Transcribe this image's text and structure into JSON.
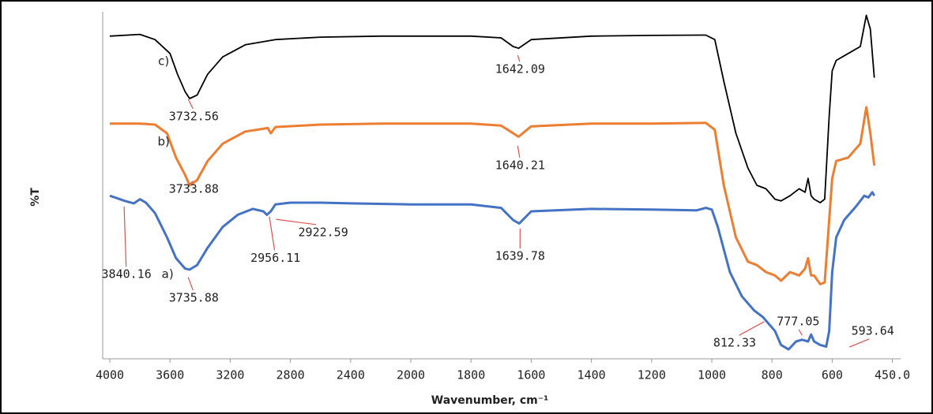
{
  "chart_data": {
    "type": "line",
    "y_label": "%T",
    "x_label": "Wavenumber, cm⁻¹",
    "xlim": [
      4000,
      450
    ],
    "xticks": [
      4000,
      3600,
      3200,
      2800,
      2400,
      2000,
      1800,
      1600,
      1400,
      1200,
      1000,
      800,
      600,
      {
        "value": 450,
        "label": "450.0"
      }
    ],
    "ylim": [
      0,
      100
    ],
    "series": [
      {
        "color": "#000000",
        "x": [
          4000,
          3800,
          3700,
          3600,
          3550,
          3500,
          3470,
          3420,
          3350,
          3250,
          3100,
          2900,
          2600,
          2200,
          1800,
          1700,
          1660,
          1642,
          1600,
          1400,
          1200,
          1020,
          990,
          960,
          920,
          880,
          850,
          820,
          790,
          770,
          740,
          710,
          690,
          680,
          670,
          660,
          640,
          625,
          610,
          600,
          590,
          560,
          530,
          515,
          505,
          495
        ],
        "values": [
          93,
          93.5,
          92,
          88,
          82,
          77,
          75,
          76,
          82,
          87,
          90.5,
          92,
          92.7,
          93,
          93,
          92.5,
          90,
          89.5,
          92,
          93,
          93.2,
          93.3,
          92,
          80,
          65,
          55,
          50,
          49,
          46,
          45.5,
          47,
          49,
          48,
          52,
          47,
          46,
          45,
          46,
          70,
          83,
          86,
          88,
          90,
          99,
          95,
          81
        ]
      },
      {
        "color": "#ed7d31",
        "x": [
          4000,
          3800,
          3700,
          3620,
          3560,
          3500,
          3470,
          3420,
          3350,
          3250,
          3100,
          2950,
          2930,
          2900,
          2600,
          2200,
          1800,
          1700,
          1660,
          1642,
          1600,
          1400,
          1200,
          1020,
          990,
          960,
          920,
          880,
          850,
          820,
          790,
          770,
          740,
          710,
          690,
          680,
          670,
          660,
          640,
          625,
          610,
          600,
          590,
          560,
          530,
          515,
          505,
          495
        ],
        "values": [
          67.8,
          67.8,
          67.5,
          65,
          58,
          53,
          50,
          51.5,
          57,
          62,
          65.5,
          66.5,
          65,
          66.8,
          67.5,
          67.8,
          67.8,
          67.2,
          65,
          64,
          67,
          67.8,
          67.8,
          68,
          66,
          50,
          35,
          28,
          27,
          25,
          24,
          22.5,
          25,
          24,
          26,
          29,
          24,
          24,
          21.5,
          22,
          40,
          52,
          57,
          58,
          62,
          72.5,
          65,
          55.7
        ]
      },
      {
        "color": "#4472c4",
        "x": [
          4000,
          3900,
          3840,
          3800,
          3760,
          3700,
          3620,
          3560,
          3500,
          3470,
          3420,
          3350,
          3250,
          3150,
          3050,
          2980,
          2956,
          2930,
          2900,
          2800,
          2600,
          2400,
          2000,
          1800,
          1700,
          1660,
          1640,
          1600,
          1400,
          1200,
          1050,
          1020,
          1000,
          980,
          940,
          900,
          860,
          830,
          812,
          790,
          770,
          745,
          720,
          700,
          680,
          670,
          660,
          640,
          620,
          610,
          600,
          590,
          570,
          540,
          520,
          510,
          500,
          495
        ],
        "values": [
          47,
          45.5,
          44.8,
          46,
          45,
          42,
          35,
          29,
          26,
          25.7,
          27,
          32,
          38,
          41.5,
          43.2,
          42.5,
          41.5,
          42.5,
          44.5,
          45,
          45,
          44.8,
          44.5,
          44.5,
          43.5,
          40,
          39,
          42.5,
          43.2,
          43,
          42.8,
          43.5,
          43,
          38,
          25,
          18,
          14,
          12,
          10.2,
          8,
          4,
          2.7,
          5,
          5.5,
          5,
          7,
          5,
          4,
          3.5,
          8,
          25,
          35,
          40,
          44,
          47,
          46.5,
          48,
          47
        ]
      }
    ],
    "annotations": [
      {
        "text": "c)",
        "x": 3642,
        "y": 85.7
      },
      {
        "text": "3732.56",
        "x": 3442,
        "y": 69.8,
        "tip": [
          3479,
          74.8
        ]
      },
      {
        "text": "1642.09",
        "x": 1637,
        "y": 83.4,
        "tip": [
          1645,
          87.5
        ]
      },
      {
        "text": "b)",
        "x": 3642,
        "y": 62.5
      },
      {
        "text": "3733.88",
        "x": 3442,
        "y": 48.9,
        "tip": [
          3479,
          50
        ]
      },
      {
        "text": "1640.21",
        "x": 1637,
        "y": 55.7,
        "tip": [
          1645,
          61.4
        ]
      },
      {
        "text": "a)",
        "x": 3616,
        "y": 24.3
      },
      {
        "text": "3735.88",
        "x": 3442,
        "y": 17.5,
        "tip": [
          3479,
          23.5
        ]
      },
      {
        "text": "3840.16",
        "x": 3889,
        "y": 24.3,
        "tip": [
          3905,
          43.9
        ]
      },
      {
        "text": "2956.11",
        "x": 2899,
        "y": 29,
        "tip": [
          2940,
          41
        ]
      },
      {
        "text": "2922.59",
        "x": 2582,
        "y": 36.4,
        "tip": [
          2895,
          40.2
        ]
      },
      {
        "text": "1639.78",
        "x": 1637,
        "y": 29.5,
        "tip": [
          1637,
          37.5
        ]
      },
      {
        "text": "812.33",
        "x": 924,
        "y": 4.5,
        "tip": [
          826,
          10.7
        ]
      },
      {
        "text": "777.05",
        "x": 713,
        "y": 10.7,
        "tip": [
          700,
          6.8
        ]
      },
      {
        "text": "593.64",
        "x": 499,
        "y": 8,
        "tip": [
          557,
          3.4
        ]
      }
    ]
  }
}
